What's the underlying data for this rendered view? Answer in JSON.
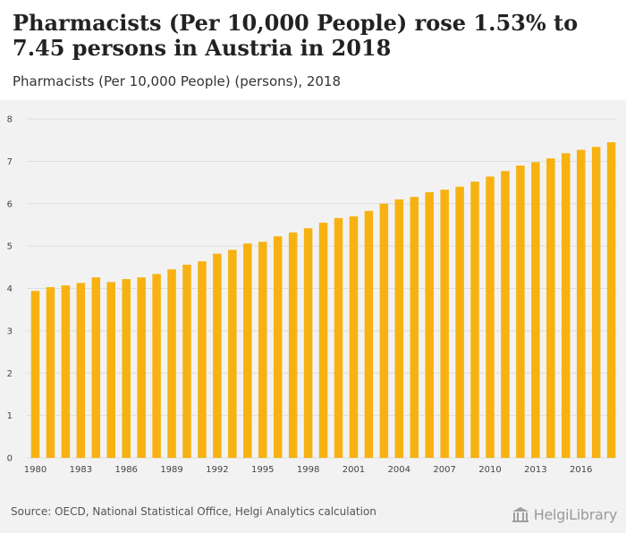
{
  "header": {
    "title": "Pharmacists (Per 10,000 People) rose 1.53% to 7.45 persons in Austria in 2018",
    "subtitle": "Pharmacists (Per 10,000 People) (persons), 2018"
  },
  "footer": {
    "source": "Source: OECD, National Statistical Office, Helgi Analytics calculation",
    "logo_text": "HelgiLibrary"
  },
  "colors": {
    "bar": "#f7b211",
    "grid": "#dddddd",
    "background": "#f2f2f2"
  },
  "chart_data": {
    "type": "bar",
    "title": "Pharmacists (Per 10,000 People) rose 1.53% to 7.45 persons in Austria in 2018",
    "subtitle": "Pharmacists (Per 10,000 People) (persons), 2018",
    "xlabel": "",
    "ylabel": "",
    "categories": [
      1980,
      1981,
      1982,
      1983,
      1984,
      1985,
      1986,
      1987,
      1988,
      1989,
      1990,
      1991,
      1992,
      1993,
      1994,
      1995,
      1996,
      1997,
      1998,
      1999,
      2000,
      2001,
      2002,
      2003,
      2004,
      2005,
      2006,
      2007,
      2008,
      2009,
      2010,
      2011,
      2012,
      2013,
      2014,
      2015,
      2016,
      2017,
      2018
    ],
    "x_tick_labels": [
      "1980",
      "1983",
      "1986",
      "1989",
      "1992",
      "1995",
      "1998",
      "2001",
      "2004",
      "2007",
      "2010",
      "2013",
      "2016"
    ],
    "values": [
      3.94,
      4.03,
      4.07,
      4.13,
      4.26,
      4.15,
      4.22,
      4.26,
      4.34,
      4.45,
      4.56,
      4.64,
      4.82,
      4.91,
      5.06,
      5.1,
      5.23,
      5.32,
      5.42,
      5.55,
      5.66,
      5.7,
      5.83,
      6.0,
      6.1,
      6.16,
      6.27,
      6.33,
      6.4,
      6.52,
      6.64,
      6.77,
      6.9,
      6.98,
      7.07,
      7.19,
      7.27,
      7.34,
      7.45
    ],
    "ylim": [
      0,
      8
    ],
    "y_ticks": [
      "0",
      "1",
      "2",
      "3",
      "4",
      "5",
      "6",
      "7",
      "8"
    ],
    "grid": true,
    "legend": "none"
  }
}
